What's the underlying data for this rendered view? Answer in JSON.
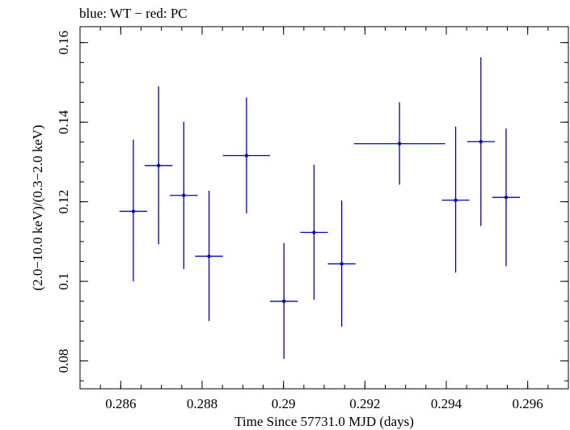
{
  "chart_data": {
    "type": "scatter",
    "title": "blue: WT − red: PC",
    "xlabel": "Time Since 57731.0 MJD (days)",
    "ylabel": "(2.0−10.0 keV)/(0.3−2.0 keV)",
    "xlim": [
      0.285,
      0.297
    ],
    "ylim": [
      0.073,
      0.164
    ],
    "xticks": [
      0.286,
      0.288,
      0.29,
      0.292,
      0.294,
      0.296
    ],
    "xtick_labels": [
      "0.286",
      "0.288",
      "0.29",
      "0.292",
      "0.294",
      "0.296"
    ],
    "yticks": [
      0.08,
      0.1,
      0.12,
      0.14,
      0.16
    ],
    "ytick_labels": [
      "0.08",
      "0.1",
      "0.12",
      "0.14",
      "0.16"
    ],
    "grid": false,
    "color": "#0000cc",
    "points": [
      {
        "x": 0.28631,
        "xerr": 0.00034,
        "y": 0.1176,
        "yerr_lo": 0.0176,
        "yerr_hi": 0.018
      },
      {
        "x": 0.28693,
        "xerr": 0.00034,
        "y": 0.1291,
        "yerr_lo": 0.0198,
        "yerr_hi": 0.0199
      },
      {
        "x": 0.28755,
        "xerr": 0.00034,
        "y": 0.1216,
        "yerr_lo": 0.0185,
        "yerr_hi": 0.0185
      },
      {
        "x": 0.28817,
        "xerr": 0.00034,
        "y": 0.1063,
        "yerr_lo": 0.0163,
        "yerr_hi": 0.0165
      },
      {
        "x": 0.28909,
        "xerr": 0.00058,
        "y": 0.1316,
        "yerr_lo": 0.0145,
        "yerr_hi": 0.0146
      },
      {
        "x": 0.29001,
        "xerr": 0.00034,
        "y": 0.095,
        "yerr_lo": 0.0145,
        "yerr_hi": 0.0146
      },
      {
        "x": 0.29075,
        "xerr": 0.00034,
        "y": 0.1123,
        "yerr_lo": 0.0169,
        "yerr_hi": 0.017
      },
      {
        "x": 0.29143,
        "xerr": 0.00034,
        "y": 0.1044,
        "yerr_lo": 0.0158,
        "yerr_hi": 0.0159
      },
      {
        "x": 0.29285,
        "xerr": 0.00112,
        "y": 0.1346,
        "yerr_lo": 0.0103,
        "yerr_hi": 0.0104
      },
      {
        "x": 0.29423,
        "xerr": 0.00034,
        "y": 0.1204,
        "yerr_lo": 0.0182,
        "yerr_hi": 0.0185
      },
      {
        "x": 0.29485,
        "xerr": 0.00034,
        "y": 0.1351,
        "yerr_lo": 0.0212,
        "yerr_hi": 0.0212
      },
      {
        "x": 0.29547,
        "xerr": 0.00034,
        "y": 0.1211,
        "yerr_lo": 0.0173,
        "yerr_hi": 0.0173
      }
    ]
  }
}
